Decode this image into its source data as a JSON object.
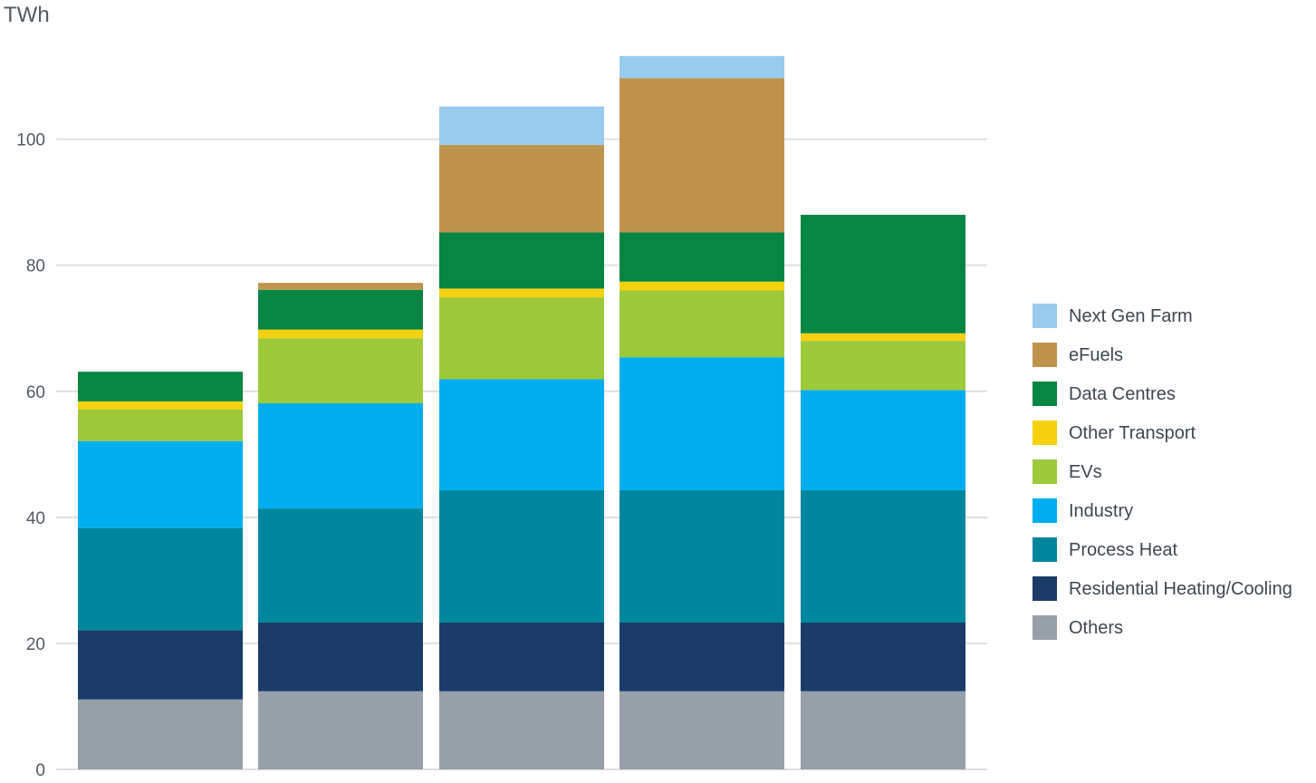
{
  "chart_data": {
    "type": "bar",
    "stacked": true,
    "unit_label": "TWh",
    "ylim": [
      0,
      113
    ],
    "yticks": [
      0,
      20,
      40,
      60,
      80,
      100
    ],
    "grid": true,
    "legend_position": "right",
    "categories": [
      "",
      "",
      "",
      "",
      ""
    ],
    "series": [
      {
        "name": "Others",
        "color": "#979fa8",
        "values": [
          11.1,
          12.4,
          12.4,
          12.4,
          12.4
        ]
      },
      {
        "name": "Residential Heating/Cooling",
        "color": "#1b3c69",
        "values": [
          11.0,
          10.9,
          10.9,
          10.9,
          10.9
        ]
      },
      {
        "name": "Process Heat",
        "color": "#00879e",
        "values": [
          16.2,
          18.1,
          21.0,
          21.0,
          21.0
        ]
      },
      {
        "name": "Industry",
        "color": "#00aeef",
        "values": [
          13.8,
          16.7,
          17.6,
          21.1,
          15.9
        ]
      },
      {
        "name": "EVs",
        "color": "#9dc93b",
        "values": [
          5.0,
          10.3,
          13.0,
          10.6,
          7.8
        ]
      },
      {
        "name": "Other Transport",
        "color": "#f6d110",
        "values": [
          1.3,
          1.4,
          1.4,
          1.4,
          1.2
        ]
      },
      {
        "name": "Data Centres",
        "color": "#078542",
        "values": [
          4.7,
          6.3,
          8.9,
          7.8,
          18.8
        ]
      },
      {
        "name": "eFuels",
        "color": "#be944d",
        "values": [
          0,
          1.1,
          13.9,
          24.5,
          0
        ]
      },
      {
        "name": "Next Gen Farm",
        "color": "#99cbef",
        "values": [
          0,
          0,
          6.1,
          3.5,
          0
        ]
      }
    ]
  }
}
